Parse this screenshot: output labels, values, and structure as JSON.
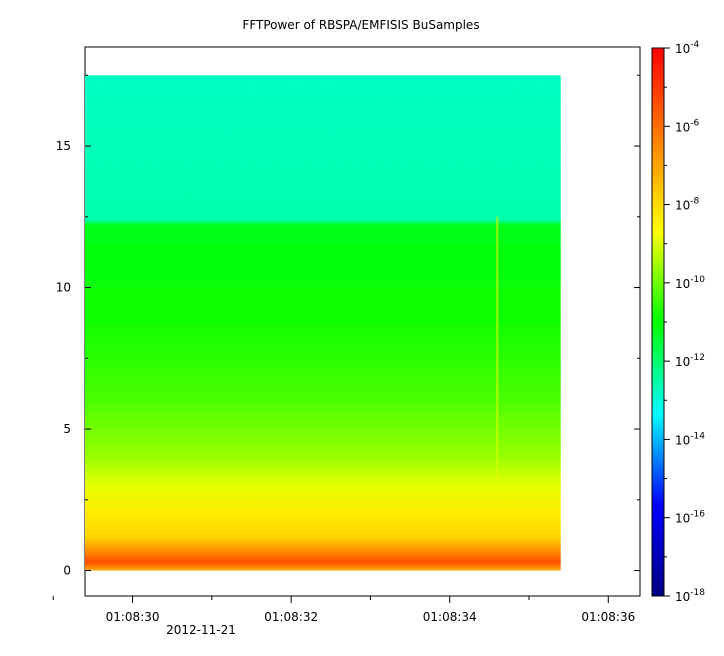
{
  "chart_data": {
    "type": "heatmap",
    "title": "FFTPower of RBSPA/EMFISIS  BuSamples",
    "x": {
      "date_label": "2012-11-21",
      "start": "01:08:29.4",
      "end": "01:08:36.4",
      "data_start": "01:08:29.4",
      "data_end": "01:08:35.4",
      "minor_ticks": [
        "01:08:29",
        "01:08:31",
        "01:08:33",
        "01:08:35"
      ],
      "major_ticks": [
        {
          "t": "01:08:30",
          "label": "01:08:30"
        },
        {
          "t": "01:08:32",
          "label": "01:08:32"
        },
        {
          "t": "01:08:34",
          "label": "01:08:34"
        },
        {
          "t": "01:08:36",
          "label": "01:08:36"
        }
      ]
    },
    "y": {
      "range": [
        -0.9,
        18.5
      ],
      "data_range": [
        0,
        17.5
      ],
      "ticks": [
        0,
        5,
        10,
        15
      ],
      "minor_ticks": [
        0,
        2.5,
        5,
        7.5,
        10,
        12.5,
        15,
        17.5
      ]
    },
    "colorbar": {
      "scale": "log",
      "range": [
        1e-18,
        0.0001
      ],
      "stops": [
        "#000080",
        "#0000ff",
        "#00ffff",
        "#00ff00",
        "#ffff00",
        "#ff8000",
        "#ff0000"
      ],
      "tick_labels": [
        {
          "base": "10",
          "exp": "-4"
        },
        {
          "base": "10",
          "exp": "-6"
        },
        {
          "base": "10",
          "exp": "-8"
        },
        {
          "base": "10",
          "exp": "-10"
        },
        {
          "base": "10",
          "exp": "-12"
        },
        {
          "base": "10",
          "exp": "-14"
        },
        {
          "base": "10",
          "exp": "-16"
        },
        {
          "base": "10",
          "exp": "-18"
        }
      ]
    },
    "spectrum_profile": [
      {
        "y": 0.0,
        "log_power": -7.2
      },
      {
        "y": 0.3,
        "log_power": -5.4
      },
      {
        "y": 0.7,
        "log_power": -6.6
      },
      {
        "y": 1.2,
        "log_power": -7.9
      },
      {
        "y": 2.0,
        "log_power": -8.3
      },
      {
        "y": 3.0,
        "log_power": -8.9
      },
      {
        "y": 4.0,
        "log_power": -9.6
      },
      {
        "y": 6.0,
        "log_power": -10.3
      },
      {
        "y": 9.0,
        "log_power": -10.9
      },
      {
        "y": 12.2,
        "log_power": -11.2
      },
      {
        "y": 12.4,
        "log_power": -12.6
      },
      {
        "y": 17.5,
        "log_power": -12.8
      }
    ],
    "annotations": [
      {
        "type": "vertical_streak",
        "t": "01:08:34.6",
        "y_from": 3.0,
        "y_to": 12.5,
        "log_power": -9.0
      }
    ]
  }
}
